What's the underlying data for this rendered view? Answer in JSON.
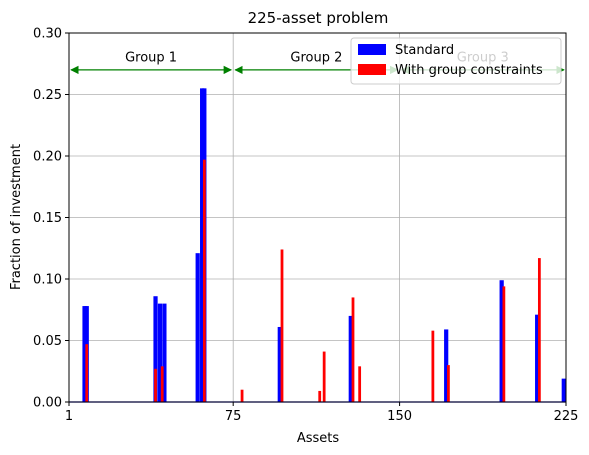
{
  "chart_data": {
    "type": "bar",
    "title": "225-asset problem",
    "xlabel": "Assets",
    "ylabel": "Fraction of investment",
    "xlim": [
      1,
      225
    ],
    "ylim": [
      0,
      0.3
    ],
    "xticks": [
      1,
      75,
      150,
      225
    ],
    "yticks": [
      0.0,
      0.05,
      0.1,
      0.15,
      0.2,
      0.25,
      0.3
    ],
    "ytick_labels": [
      "0.00",
      "0.05",
      "0.10",
      "0.15",
      "0.20",
      "0.25",
      "0.30"
    ],
    "grid": true,
    "legend_position": "top-right",
    "series": [
      {
        "name": "Standard",
        "color": "#0000ff",
        "points": [
          {
            "x": 8,
            "y": 0.078
          },
          {
            "x": 9,
            "y": 0.078
          },
          {
            "x": 40,
            "y": 0.086
          },
          {
            "x": 42,
            "y": 0.08
          },
          {
            "x": 44,
            "y": 0.08
          },
          {
            "x": 59,
            "y": 0.121
          },
          {
            "x": 61,
            "y": 0.255
          },
          {
            "x": 62,
            "y": 0.255
          },
          {
            "x": 96,
            "y": 0.061
          },
          {
            "x": 128,
            "y": 0.07
          },
          {
            "x": 171,
            "y": 0.059
          },
          {
            "x": 196,
            "y": 0.099
          },
          {
            "x": 212,
            "y": 0.071
          },
          {
            "x": 224,
            "y": 0.019
          }
        ]
      },
      {
        "name": "With group constraints",
        "color": "#ff0000",
        "points": [
          {
            "x": 9,
            "y": 0.047
          },
          {
            "x": 40,
            "y": 0.027
          },
          {
            "x": 43,
            "y": 0.029
          },
          {
            "x": 62,
            "y": 0.197
          },
          {
            "x": 79,
            "y": 0.01
          },
          {
            "x": 97,
            "y": 0.124
          },
          {
            "x": 114,
            "y": 0.009
          },
          {
            "x": 116,
            "y": 0.041
          },
          {
            "x": 129,
            "y": 0.085
          },
          {
            "x": 132,
            "y": 0.029
          },
          {
            "x": 165,
            "y": 0.058
          },
          {
            "x": 172,
            "y": 0.03
          },
          {
            "x": 197,
            "y": 0.094
          },
          {
            "x": 213,
            "y": 0.117
          }
        ]
      }
    ],
    "group_boundaries": [
      75,
      150
    ],
    "groups": [
      {
        "label": "Group 1",
        "from": 1,
        "to": 75
      },
      {
        "label": "Group 2",
        "from": 75,
        "to": 150
      },
      {
        "label": "Group 3",
        "from": 150,
        "to": 225
      }
    ],
    "group_arrow_y": 0.27,
    "group_arrow_color": "#008000",
    "group_label_y": 0.28
  }
}
